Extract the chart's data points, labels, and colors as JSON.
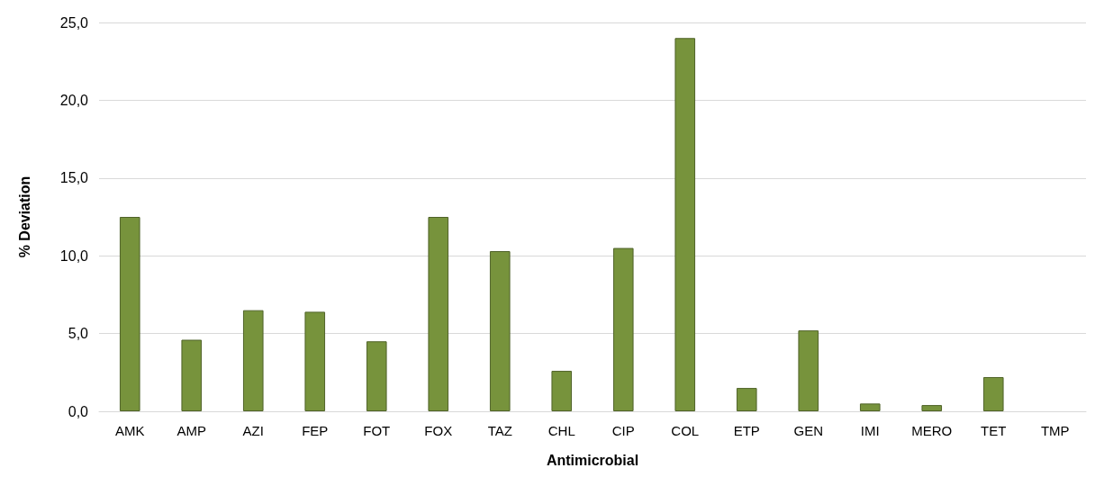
{
  "chart_data": {
    "type": "bar",
    "xlabel": "Antimicrobial",
    "ylabel": "% Deviation",
    "categories": [
      "AMK",
      "AMP",
      "AZI",
      "FEP",
      "FOT",
      "FOX",
      "TAZ",
      "CHL",
      "CIP",
      "COL",
      "ETP",
      "GEN",
      "IMI",
      "MERO",
      "TET",
      "TMP"
    ],
    "values": [
      12.5,
      4.6,
      6.5,
      6.4,
      4.5,
      12.5,
      10.3,
      2.6,
      10.5,
      24.0,
      1.5,
      5.2,
      0.5,
      0.4,
      2.2,
      null
    ],
    "color": "#77933c",
    "ylim": [
      0,
      25
    ],
    "yticks": [
      {
        "value": 0,
        "label": "0,0"
      },
      {
        "value": 5,
        "label": "5,0"
      },
      {
        "value": 10,
        "label": "10,0"
      },
      {
        "value": 15,
        "label": "15,0"
      },
      {
        "value": 20,
        "label": "20,0"
      },
      {
        "value": 25,
        "label": "25,0"
      }
    ],
    "grid": "y"
  }
}
